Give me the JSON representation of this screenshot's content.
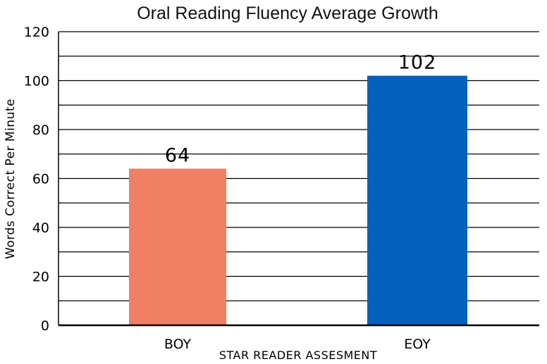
{
  "chart_data": {
    "type": "bar",
    "title": "Oral Reading Fluency Average Growth",
    "xlabel": "STAR READER ASSESMENT",
    "ylabel": "Words Correct Per Minute",
    "categories": [
      "BOY",
      "EOY"
    ],
    "values": [
      64,
      102
    ],
    "data_labels": [
      "64",
      "102"
    ],
    "colors": [
      "#f07f63",
      "#0161bb"
    ],
    "ylim": [
      0,
      120
    ],
    "yticks": [
      0,
      20,
      40,
      60,
      80,
      100,
      120
    ],
    "ytick_labels": [
      "0",
      "20",
      "40",
      "60",
      "80",
      "100",
      "120"
    ],
    "gridlines_every": 10,
    "grid": true,
    "legend": "none"
  }
}
